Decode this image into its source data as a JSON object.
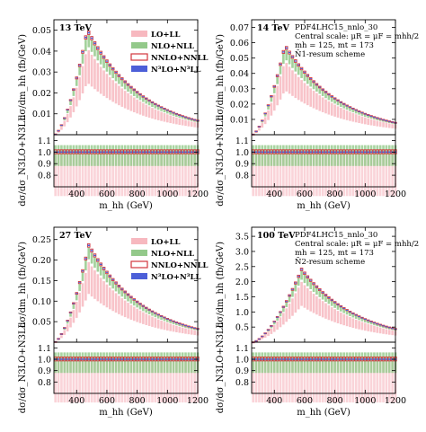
{
  "figure": {
    "xlabel": "m_hh (GeV)",
    "ylabel_top": "dσ/dm_hh (fb/GeV)",
    "ylabel_ratio": "dσ/dσ_N3LO+N3LL",
    "legend": [
      "LO+LL",
      "NLO+NLL",
      "NNLO+NNLL",
      "N³LO+N³LL"
    ],
    "info_lines": [
      "PDF4LHC15_nnlo_30",
      "Central scale: μR = μF = mhh/2",
      "mh = 125, mt = 173",
      "N̄1-resum scheme"
    ],
    "info_lines_100": [
      "PDF4LHC15_nnlo_30",
      "Central scale: μR = μF = mhh/2",
      "mh = 125, mt = 173",
      "N̄2-resum scheme"
    ],
    "colors": {
      "lo": "#f7b8bf",
      "nlo": "#93c98a",
      "nnlo": "#d2363c",
      "n3lo": "#4c5fd8"
    }
  },
  "chart_data": [
    {
      "type": "bar",
      "title": "13 TeV",
      "x": [
        260,
        280,
        300,
        320,
        340,
        360,
        380,
        400,
        420,
        440,
        460,
        480,
        500,
        520,
        540,
        560,
        580,
        600,
        620,
        640,
        660,
        680,
        700,
        720,
        740,
        760,
        780,
        800,
        820,
        840,
        860,
        880,
        900,
        920,
        940,
        960,
        980,
        1000,
        1020,
        1040,
        1060,
        1080,
        1100,
        1120,
        1140,
        1160,
        1180,
        1200
      ],
      "xlim": [
        250,
        1200
      ],
      "ylim": [
        0,
        0.055
      ],
      "yticks": [
        0.01,
        0.02,
        0.03,
        0.04,
        0.05
      ],
      "peak": 0.05,
      "peak_x": 470
    },
    {
      "type": "bar",
      "title": "14 TeV",
      "xlim": [
        250,
        1200
      ],
      "ylim": [
        0,
        0.075
      ],
      "yticks": [
        0.01,
        0.02,
        0.03,
        0.04,
        0.05,
        0.06,
        0.07
      ],
      "peak": 0.058,
      "peak_x": 470
    },
    {
      "type": "bar",
      "title": "27 TeV",
      "xlim": [
        250,
        1200
      ],
      "ylim": [
        0,
        0.28
      ],
      "yticks": [
        0.05,
        0.1,
        0.15,
        0.2,
        0.25
      ],
      "peak": 0.235,
      "peak_x": 480
    },
    {
      "type": "bar",
      "title": "100 TeV",
      "xlim": [
        250,
        1200
      ],
      "ylim": [
        0,
        3.8
      ],
      "yticks": [
        0.5,
        1.0,
        1.5,
        2.0,
        2.5,
        3.0,
        3.5
      ],
      "peak": 2.4,
      "peak_x": 580
    }
  ],
  "ratio": {
    "ylim": [
      0.7,
      1.15
    ],
    "yticks": [
      0.8,
      0.9,
      1.0,
      1.1
    ]
  },
  "xticks": [
    400,
    600,
    800,
    1000,
    1200
  ]
}
